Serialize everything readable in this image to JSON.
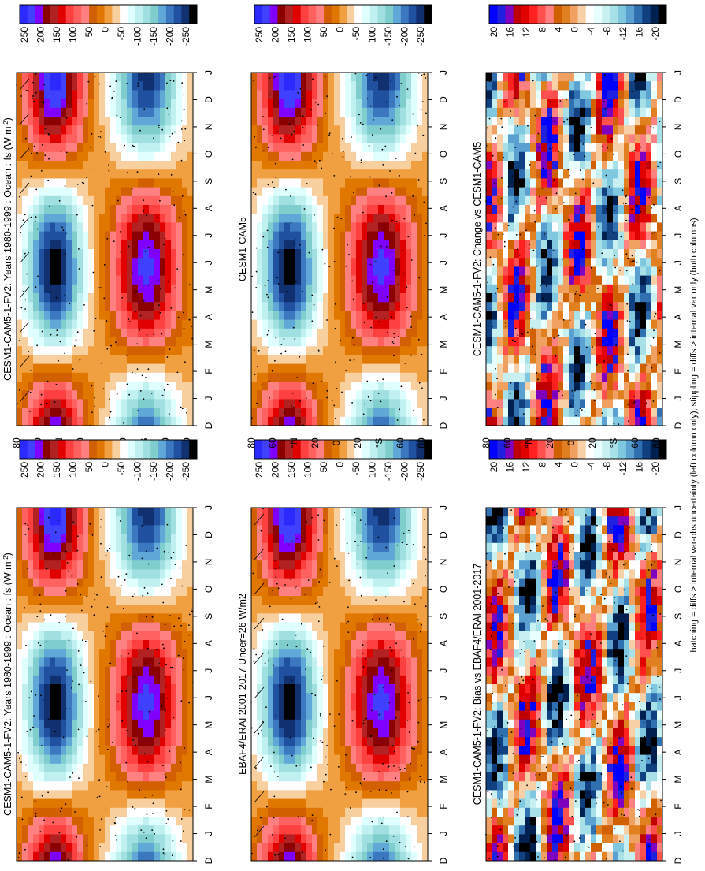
{
  "footnote": "hatching = diffs > internal var-obs uncertainty (left column only); stippling = diffs > internal var only (both columns)",
  "palettes": {
    "main_colors": [
      "#2a2aff",
      "#4040ff",
      "#7f00ff",
      "#8b0000",
      "#b22222",
      "#e00000",
      "#ff4040",
      "#ff6060",
      "#ff8080",
      "#d25f00",
      "#e07800",
      "#f0a040",
      "#f8d0a0",
      "#ffffff",
      "#e0ffff",
      "#c0f0f0",
      "#a0e0e0",
      "#7fcdcd",
      "#5fa8d8",
      "#3c78c0",
      "#2050a0",
      "#103070",
      "#000000"
    ],
    "diff_colors": [
      "#0000ff",
      "#2020e0",
      "#8000c0",
      "#c00000",
      "#e00000",
      "#ff2020",
      "#ff5050",
      "#ff8080",
      "#d06000",
      "#e08020",
      "#f0a060",
      "#f8d0a8",
      "#ffffff",
      "#e8ffff",
      "#c8f0f0",
      "#a8e0e8",
      "#80c8e0",
      "#5aa0d0",
      "#3070b0",
      "#104080",
      "#002050",
      "#000000"
    ]
  },
  "chart_data": [
    {
      "type": "heatmap",
      "title": "CESM1-CAM5-1-FV2: Years 1980-1999 : Ocean : fs (W m",
      "title_sup": "-2",
      "title_close": ")",
      "x_ticks": [
        "D",
        "J",
        "F",
        "M",
        "A",
        "M",
        "J",
        "J",
        "A",
        "S",
        "O",
        "N",
        "D",
        "J"
      ],
      "y_ticks": [
        "80",
        "60",
        "°N",
        "20",
        "0",
        "20",
        "°S",
        "60",
        "80"
      ],
      "colorbar_ticks": [
        "250",
        "200",
        "150",
        "100",
        "50",
        "0",
        "-50",
        "-100",
        "-150",
        "-200",
        "-250"
      ],
      "palette": "main",
      "hatching": true
    },
    {
      "type": "heatmap",
      "title": "CESM1-CAM5-1-FV2: Years 1980-1999 : Ocean : fs (W m",
      "title_sup": "-2",
      "title_close": ")",
      "x_ticks": [
        "D",
        "J",
        "F",
        "M",
        "A",
        "M",
        "J",
        "J",
        "A",
        "S",
        "O",
        "N",
        "D",
        "J"
      ],
      "y_ticks": [
        "80",
        "60",
        "°N",
        "20",
        "0",
        "20",
        "°S",
        "60",
        "80"
      ],
      "colorbar_ticks": [
        "250",
        "200",
        "150",
        "100",
        "50",
        "0",
        "-50",
        "-100",
        "-150",
        "-200",
        "-250"
      ],
      "palette": "main",
      "hatching": false
    },
    {
      "type": "heatmap",
      "title": "EBAF4/ERAI 2001-2017 Uncer=26 W/m2",
      "x_ticks": [
        "D",
        "J",
        "F",
        "M",
        "A",
        "M",
        "J",
        "J",
        "A",
        "S",
        "O",
        "N",
        "D",
        "J"
      ],
      "y_ticks": [
        "80",
        "60",
        "°N",
        "20",
        "0",
        "20",
        "°S",
        "60",
        "80"
      ],
      "colorbar_ticks": [
        "250",
        "200",
        "150",
        "100",
        "50",
        "0",
        "-50",
        "-100",
        "-150",
        "-200",
        "-250"
      ],
      "palette": "main",
      "hatching": true
    },
    {
      "type": "heatmap",
      "title": "CESM1-CAM5",
      "x_ticks": [
        "D",
        "J",
        "F",
        "M",
        "A",
        "M",
        "J",
        "J",
        "A",
        "S",
        "O",
        "N",
        "D",
        "J"
      ],
      "y_ticks": [
        "80",
        "60",
        "°N",
        "20",
        "0",
        "20",
        "°S",
        "60",
        "80"
      ],
      "colorbar_ticks": [
        "250",
        "200",
        "150",
        "100",
        "50",
        "0",
        "-50",
        "-100",
        "-150",
        "-200",
        "-250"
      ],
      "palette": "main",
      "hatching": false
    },
    {
      "type": "heatmap",
      "title": "CESM1-CAM5-1-FV2: Bias vs EBAF4/ERAI 2001-2017",
      "x_ticks": [
        "D",
        "J",
        "F",
        "M",
        "A",
        "M",
        "J",
        "J",
        "A",
        "S",
        "O",
        "N",
        "D",
        "J"
      ],
      "y_ticks": [
        "80",
        "60",
        "°N",
        "20",
        "0",
        "20",
        "°S",
        "60",
        "80"
      ],
      "colorbar_ticks": [
        "20",
        "16",
        "12",
        "8",
        "4",
        "0",
        "-4",
        "-8",
        "-12",
        "-16",
        "-20"
      ],
      "palette": "diff",
      "hatching": false
    },
    {
      "type": "heatmap",
      "title": "CESM1-CAM5-1-FV2: Change vs CESM1-CAM5",
      "x_ticks": [
        "D",
        "J",
        "F",
        "M",
        "A",
        "M",
        "J",
        "J",
        "A",
        "S",
        "O",
        "N",
        "D",
        "J"
      ],
      "y_ticks": [
        "80",
        "60",
        "°N",
        "20",
        "0",
        "20",
        "°S",
        "60",
        "80"
      ],
      "colorbar_ticks": [
        "20",
        "16",
        "12",
        "8",
        "4",
        "0",
        "-4",
        "-8",
        "-12",
        "-16",
        "-20"
      ],
      "palette": "diff",
      "hatching": false
    }
  ]
}
